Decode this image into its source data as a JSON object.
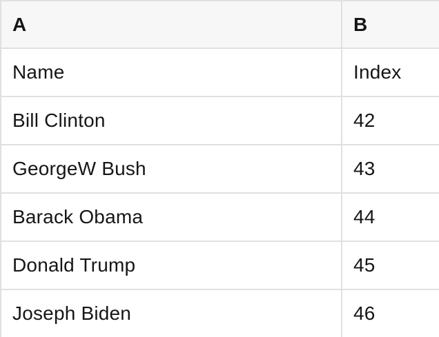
{
  "table": {
    "columns": [
      {
        "id": "A",
        "header": "A"
      },
      {
        "id": "B",
        "header": "B"
      }
    ],
    "rows": [
      [
        "Name",
        "Index"
      ],
      [
        "Bill Clinton",
        "42"
      ],
      [
        "GeorgeW Bush",
        "43"
      ],
      [
        "Barack Obama",
        "44"
      ],
      [
        "Donald Trump",
        "45"
      ],
      [
        "Joseph Biden",
        "46"
      ]
    ],
    "colors": {
      "header_bg": "#f7f7f7",
      "border": "#e0e0e0",
      "text": "#161616",
      "row_bg": "#ffffff"
    }
  }
}
